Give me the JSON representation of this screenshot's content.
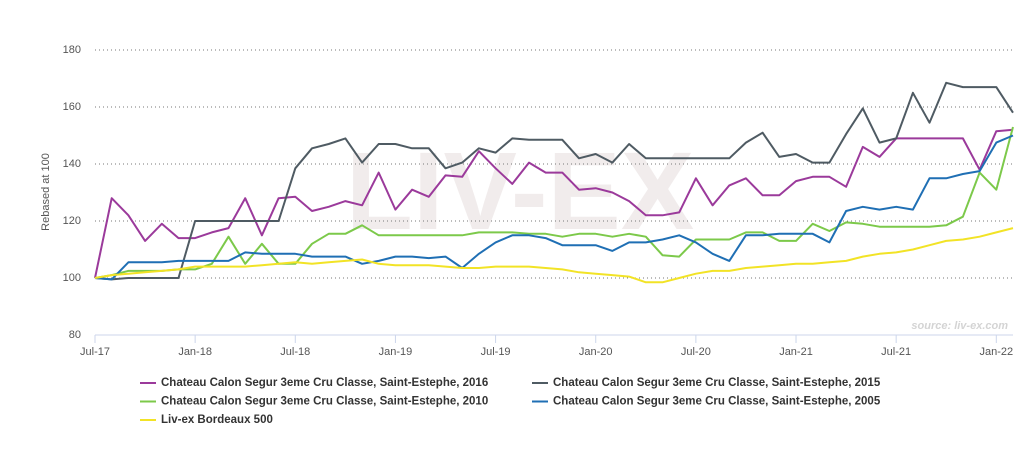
{
  "chart_data": {
    "type": "line",
    "y_label": "Rebased at 100",
    "annotation": "source: liv-ex.com",
    "watermark": "LIV-EX",
    "ylim": [
      80,
      180
    ],
    "yticks": [
      80,
      100,
      120,
      140,
      160,
      180
    ],
    "grid": true,
    "legend": "bottom",
    "categories": [
      "Jul-17",
      null,
      null,
      null,
      null,
      null,
      "Jan-18",
      null,
      null,
      null,
      null,
      null,
      "Jul-18",
      null,
      null,
      null,
      null,
      null,
      "Jan-19",
      null,
      null,
      null,
      null,
      null,
      "Jul-19",
      null,
      null,
      null,
      null,
      null,
      "Jan-20",
      null,
      null,
      null,
      null,
      null,
      "Jul-20",
      null,
      null,
      null,
      null,
      null,
      "Jan-21",
      null,
      null,
      null,
      null,
      null,
      "Jul-21",
      null,
      null,
      null,
      null,
      null,
      "Jan-22",
      null
    ],
    "series": [
      {
        "name": "Chateau Calon Segur 3eme Cru Classe, Saint-Estephe, 2016",
        "color": "#9b3a9b",
        "values": [
          100,
          128,
          122,
          113,
          119,
          114,
          114,
          116,
          117.5,
          128,
          115,
          128,
          128.5,
          123.5,
          125,
          127,
          125.5,
          137,
          124,
          131,
          128.5,
          136,
          135.5,
          144.5,
          138.5,
          133,
          140.5,
          137,
          137,
          131,
          131.5,
          130,
          127,
          122,
          122,
          123,
          135,
          125.5,
          132.5,
          135,
          129,
          129,
          134,
          135.5,
          135.5,
          132,
          146,
          142.5,
          149,
          149,
          149,
          149,
          149,
          138,
          151.5,
          152
        ]
      },
      {
        "name": "Chateau Calon Segur 3eme Cru Classe, Saint-Estephe, 2015",
        "color": "#4f5b63",
        "values": [
          100,
          99.5,
          100,
          100,
          100,
          100,
          120,
          120,
          120,
          120,
          120,
          120,
          138.5,
          145.5,
          147,
          149,
          140.5,
          147,
          147,
          145.5,
          145.5,
          138.5,
          140.5,
          145.5,
          144,
          149,
          148.5,
          148.5,
          148.5,
          142,
          143.5,
          140.5,
          147,
          142,
          142,
          142,
          142,
          142,
          142,
          147.5,
          151,
          142.5,
          143.5,
          140.5,
          140.5,
          150.5,
          159.5,
          147.5,
          149,
          165,
          154.5,
          168.5,
          167,
          167,
          167,
          158
        ]
      },
      {
        "name": "Chateau Calon Segur 3eme Cru Classe, Saint-Estephe, 2010",
        "color": "#7cc94a",
        "values": [
          100,
          101,
          102.5,
          102.5,
          102.5,
          103,
          103,
          105,
          114.5,
          105,
          112,
          105,
          105,
          112,
          115.5,
          115.5,
          118.5,
          115,
          115,
          115,
          115,
          115,
          115,
          116,
          116,
          116,
          115.5,
          115.5,
          114.5,
          115.5,
          115.5,
          114.5,
          115.5,
          114.5,
          108,
          107.5,
          113.5,
          113.5,
          113.5,
          116,
          116,
          113,
          113,
          119,
          116.5,
          119.5,
          119,
          118,
          118,
          118,
          118,
          118.5,
          121.5,
          137,
          131,
          153
        ]
      },
      {
        "name": "Chateau Calon Segur 3eme Cru Classe, Saint-Estephe, 2005",
        "color": "#1f6fb4",
        "values": [
          100,
          99.5,
          105.5,
          105.5,
          105.5,
          106,
          106,
          106,
          106,
          109,
          108.5,
          108.5,
          108.5,
          107.5,
          107.5,
          107.5,
          105,
          106,
          107.5,
          107.5,
          107,
          107.5,
          103.5,
          108.5,
          112.5,
          115,
          115,
          114,
          111.5,
          111.5,
          111.5,
          109.5,
          112.5,
          112.5,
          113.5,
          115,
          112.5,
          108.5,
          106,
          115,
          115,
          115.5,
          115.5,
          115.5,
          112.5,
          123.5,
          125,
          124,
          125,
          124,
          135,
          135,
          136.5,
          137.5,
          147.5,
          150
        ]
      },
      {
        "name": "Liv-ex Bordeaux 500",
        "color": "#f2e326",
        "values": [
          100,
          101,
          101.5,
          102,
          102.5,
          103,
          104,
          104,
          104,
          104,
          104.5,
          105,
          105.5,
          105,
          105.5,
          106,
          106.5,
          105,
          104.5,
          104.5,
          104.5,
          104,
          103.5,
          103.5,
          104,
          104,
          104,
          103.5,
          103,
          102,
          101.5,
          101,
          100.5,
          98.5,
          98.5,
          100,
          101.5,
          102.5,
          102.5,
          103.5,
          104,
          104.5,
          105,
          105,
          105.5,
          106,
          107.5,
          108.5,
          109,
          110,
          111.5,
          113,
          113.5,
          114.5,
          116,
          117.5
        ]
      }
    ]
  }
}
